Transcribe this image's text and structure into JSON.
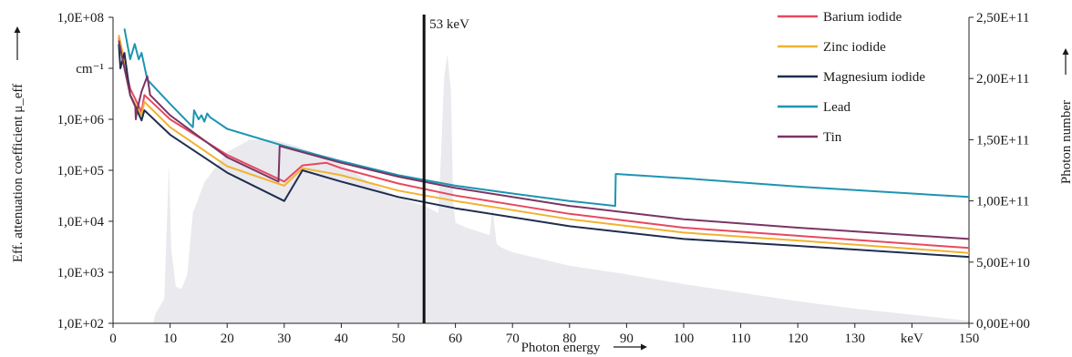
{
  "chart_data": {
    "type": "line",
    "xlabel": "Photon energy",
    "ylabel": "Eff. attenuation coefficient μ_eff",
    "ylabel_right": "Photon number",
    "xlim": [
      0,
      150
    ],
    "ylim_log": [
      100,
      100000000
    ],
    "ylim_right": [
      0,
      250000000000
    ],
    "x_ticks": [
      "0",
      "10",
      "20",
      "30",
      "40",
      "50",
      "60",
      "70",
      "80",
      "90",
      "100",
      "110",
      "120",
      "130",
      "keV",
      "150"
    ],
    "y_ticks_left": [
      "1,0E+02",
      "1,0E+03",
      "1,0E+04",
      "1,0E+05",
      "1,0E+06",
      "cm⁻¹",
      "1,0E+08"
    ],
    "y_ticks_right": [
      "0,00E+00",
      "5,00E+10",
      "1,00E+11",
      "1,50E+11",
      "2,00E+11",
      "2,50E+11"
    ],
    "annotation": {
      "x": 54.5,
      "label": "53 keV"
    },
    "legend_position": "top-right",
    "series": [
      {
        "name": "Barium iodide",
        "color": "#e8485f",
        "points": [
          [
            1,
            40000000
          ],
          [
            2,
            12000000
          ],
          [
            3,
            4000000
          ],
          [
            5,
            1400000
          ],
          [
            5.5,
            3000000
          ],
          [
            10,
            1000000
          ],
          [
            20,
            200000
          ],
          [
            30,
            60000
          ],
          [
            33.2,
            125000
          ],
          [
            37.4,
            140000
          ],
          [
            40,
            110000
          ],
          [
            50,
            55000
          ],
          [
            60,
            32000
          ],
          [
            80,
            14000
          ],
          [
            100,
            7500
          ],
          [
            120,
            5200
          ],
          [
            150,
            3000
          ]
        ]
      },
      {
        "name": "Zinc iodide",
        "color": "#f2b22e",
        "points": [
          [
            1,
            45000000
          ],
          [
            2,
            14000000
          ],
          [
            3,
            3000000
          ],
          [
            5,
            1200000
          ],
          [
            5.5,
            2200000
          ],
          [
            10,
            700000
          ],
          [
            20,
            120000
          ],
          [
            30,
            50000
          ],
          [
            33.2,
            110000
          ],
          [
            40,
            80000
          ],
          [
            50,
            40000
          ],
          [
            60,
            25000
          ],
          [
            80,
            11000
          ],
          [
            100,
            6000
          ],
          [
            120,
            4200
          ],
          [
            150,
            2400
          ]
        ]
      },
      {
        "name": "Magnesium iodide",
        "color": "#1f2d4f",
        "points": [
          [
            1,
            30000000
          ],
          [
            1.3,
            10000000
          ],
          [
            2,
            20000000
          ],
          [
            3,
            3000000
          ],
          [
            5,
            950000
          ],
          [
            5.5,
            1500000
          ],
          [
            10,
            500000
          ],
          [
            20,
            90000
          ],
          [
            30,
            25000
          ],
          [
            33.2,
            100000
          ],
          [
            40,
            60000
          ],
          [
            50,
            30000
          ],
          [
            60,
            18000
          ],
          [
            80,
            8000
          ],
          [
            100,
            4500
          ],
          [
            120,
            3300
          ],
          [
            150,
            2000
          ]
        ]
      },
      {
        "name": "Lead",
        "color": "#1d95b0",
        "points": [
          [
            2,
            60000000
          ],
          [
            3,
            15000000
          ],
          [
            3.8,
            30000000
          ],
          [
            4.5,
            15000000
          ],
          [
            5,
            20000000
          ],
          [
            6,
            6000000
          ],
          [
            10,
            2000000
          ],
          [
            14,
            700000
          ],
          [
            14.2,
            1500000
          ],
          [
            15,
            1000000
          ],
          [
            15.5,
            1200000
          ],
          [
            16,
            900000
          ],
          [
            16.5,
            1300000
          ],
          [
            17,
            1100000
          ],
          [
            20,
            650000
          ],
          [
            30,
            300000
          ],
          [
            40,
            150000
          ],
          [
            50,
            80000
          ],
          [
            60,
            50000
          ],
          [
            70,
            35000
          ],
          [
            80,
            25000
          ],
          [
            88,
            20000
          ],
          [
            88.1,
            85000
          ],
          [
            100,
            70000
          ],
          [
            120,
            48000
          ],
          [
            150,
            30000
          ]
        ]
      },
      {
        "name": "Tin",
        "color": "#7a3563",
        "points": [
          [
            1,
            35000000
          ],
          [
            2,
            10000000
          ],
          [
            3,
            3000000
          ],
          [
            3.9,
            1800000
          ],
          [
            4,
            1000000
          ],
          [
            4.2,
            1500000
          ],
          [
            5,
            3500000
          ],
          [
            6,
            7000000
          ],
          [
            6.5,
            3000000
          ],
          [
            10,
            1200000
          ],
          [
            20,
            180000
          ],
          [
            29,
            60000
          ],
          [
            29.2,
            300000
          ],
          [
            40,
            140000
          ],
          [
            50,
            75000
          ],
          [
            60,
            45000
          ],
          [
            80,
            20000
          ],
          [
            100,
            11000
          ],
          [
            120,
            7500
          ],
          [
            150,
            4500
          ]
        ]
      }
    ],
    "spectrum": {
      "name": "Photon number",
      "color": "#e9e9ee",
      "points": [
        [
          7,
          0
        ],
        [
          7.5,
          8000000000
        ],
        [
          9,
          20000000000
        ],
        [
          9.8,
          130000000000
        ],
        [
          10.2,
          60000000000
        ],
        [
          11,
          30000000000
        ],
        [
          12,
          28000000000
        ],
        [
          13,
          40000000000
        ],
        [
          14,
          90000000000
        ],
        [
          16,
          115000000000
        ],
        [
          20,
          140000000000
        ],
        [
          24,
          150000000000
        ],
        [
          28,
          150000000000
        ],
        [
          32,
          145000000000
        ],
        [
          36,
          138000000000
        ],
        [
          40,
          130000000000
        ],
        [
          45,
          115000000000
        ],
        [
          50,
          103000000000
        ],
        [
          55,
          95000000000
        ],
        [
          57,
          90000000000
        ],
        [
          57.5,
          140000000000
        ],
        [
          58,
          200000000000
        ],
        [
          58.6,
          220000000000
        ],
        [
          59.2,
          190000000000
        ],
        [
          59.6,
          100000000000
        ],
        [
          60,
          82000000000
        ],
        [
          62,
          78000000000
        ],
        [
          66,
          72000000000
        ],
        [
          66.5,
          95000000000
        ],
        [
          67.2,
          65000000000
        ],
        [
          68,
          62000000000
        ],
        [
          70,
          58000000000
        ],
        [
          80,
          47000000000
        ],
        [
          90,
          40000000000
        ],
        [
          100,
          32000000000
        ],
        [
          110,
          25000000000
        ],
        [
          120,
          18000000000
        ],
        [
          130,
          12000000000
        ],
        [
          140,
          7000000000
        ],
        [
          150,
          2000000000
        ],
        [
          150,
          0
        ]
      ]
    }
  }
}
